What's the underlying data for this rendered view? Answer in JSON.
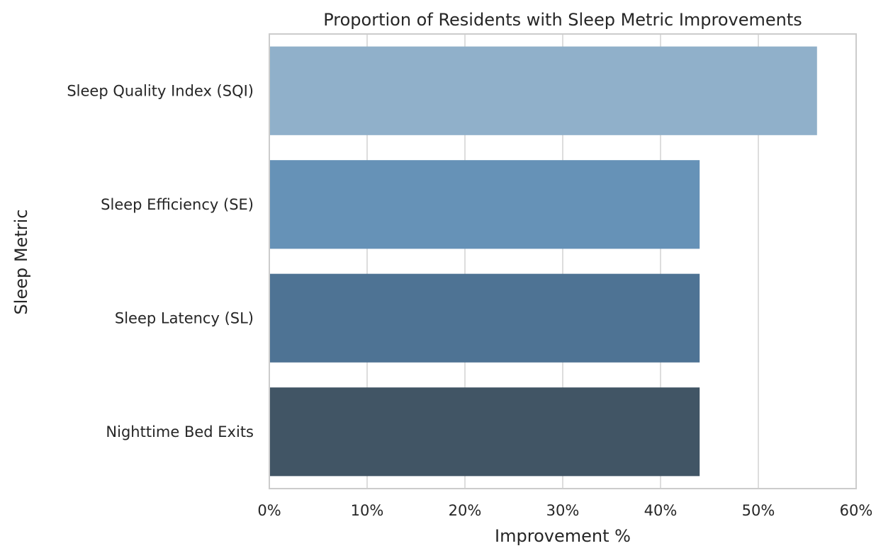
{
  "chart_data": {
    "type": "bar",
    "orientation": "horizontal",
    "title": "Proportion of Residents with Sleep Metric Improvements",
    "xlabel": "Improvement %",
    "ylabel": "Sleep Metric",
    "categories": [
      "Sleep Quality Index (SQI)",
      "Sleep Efficiency (SE)",
      "Sleep Latency (SL)",
      "Nighttime Bed Exits"
    ],
    "values": [
      56,
      44,
      44,
      44
    ],
    "xlim": [
      0,
      60
    ],
    "xticks": [
      0,
      10,
      20,
      30,
      40,
      50,
      60
    ],
    "xtick_labels": [
      "0%",
      "10%",
      "20%",
      "30%",
      "40%",
      "50%",
      "60%"
    ],
    "grid": true,
    "legend": "none",
    "colors": {
      "bars": [
        "#90b0ca",
        "#6692b7",
        "#4e7394",
        "#415565"
      ],
      "grid": "#dddddd",
      "spine": "#cccccc",
      "text": "#262626"
    }
  }
}
